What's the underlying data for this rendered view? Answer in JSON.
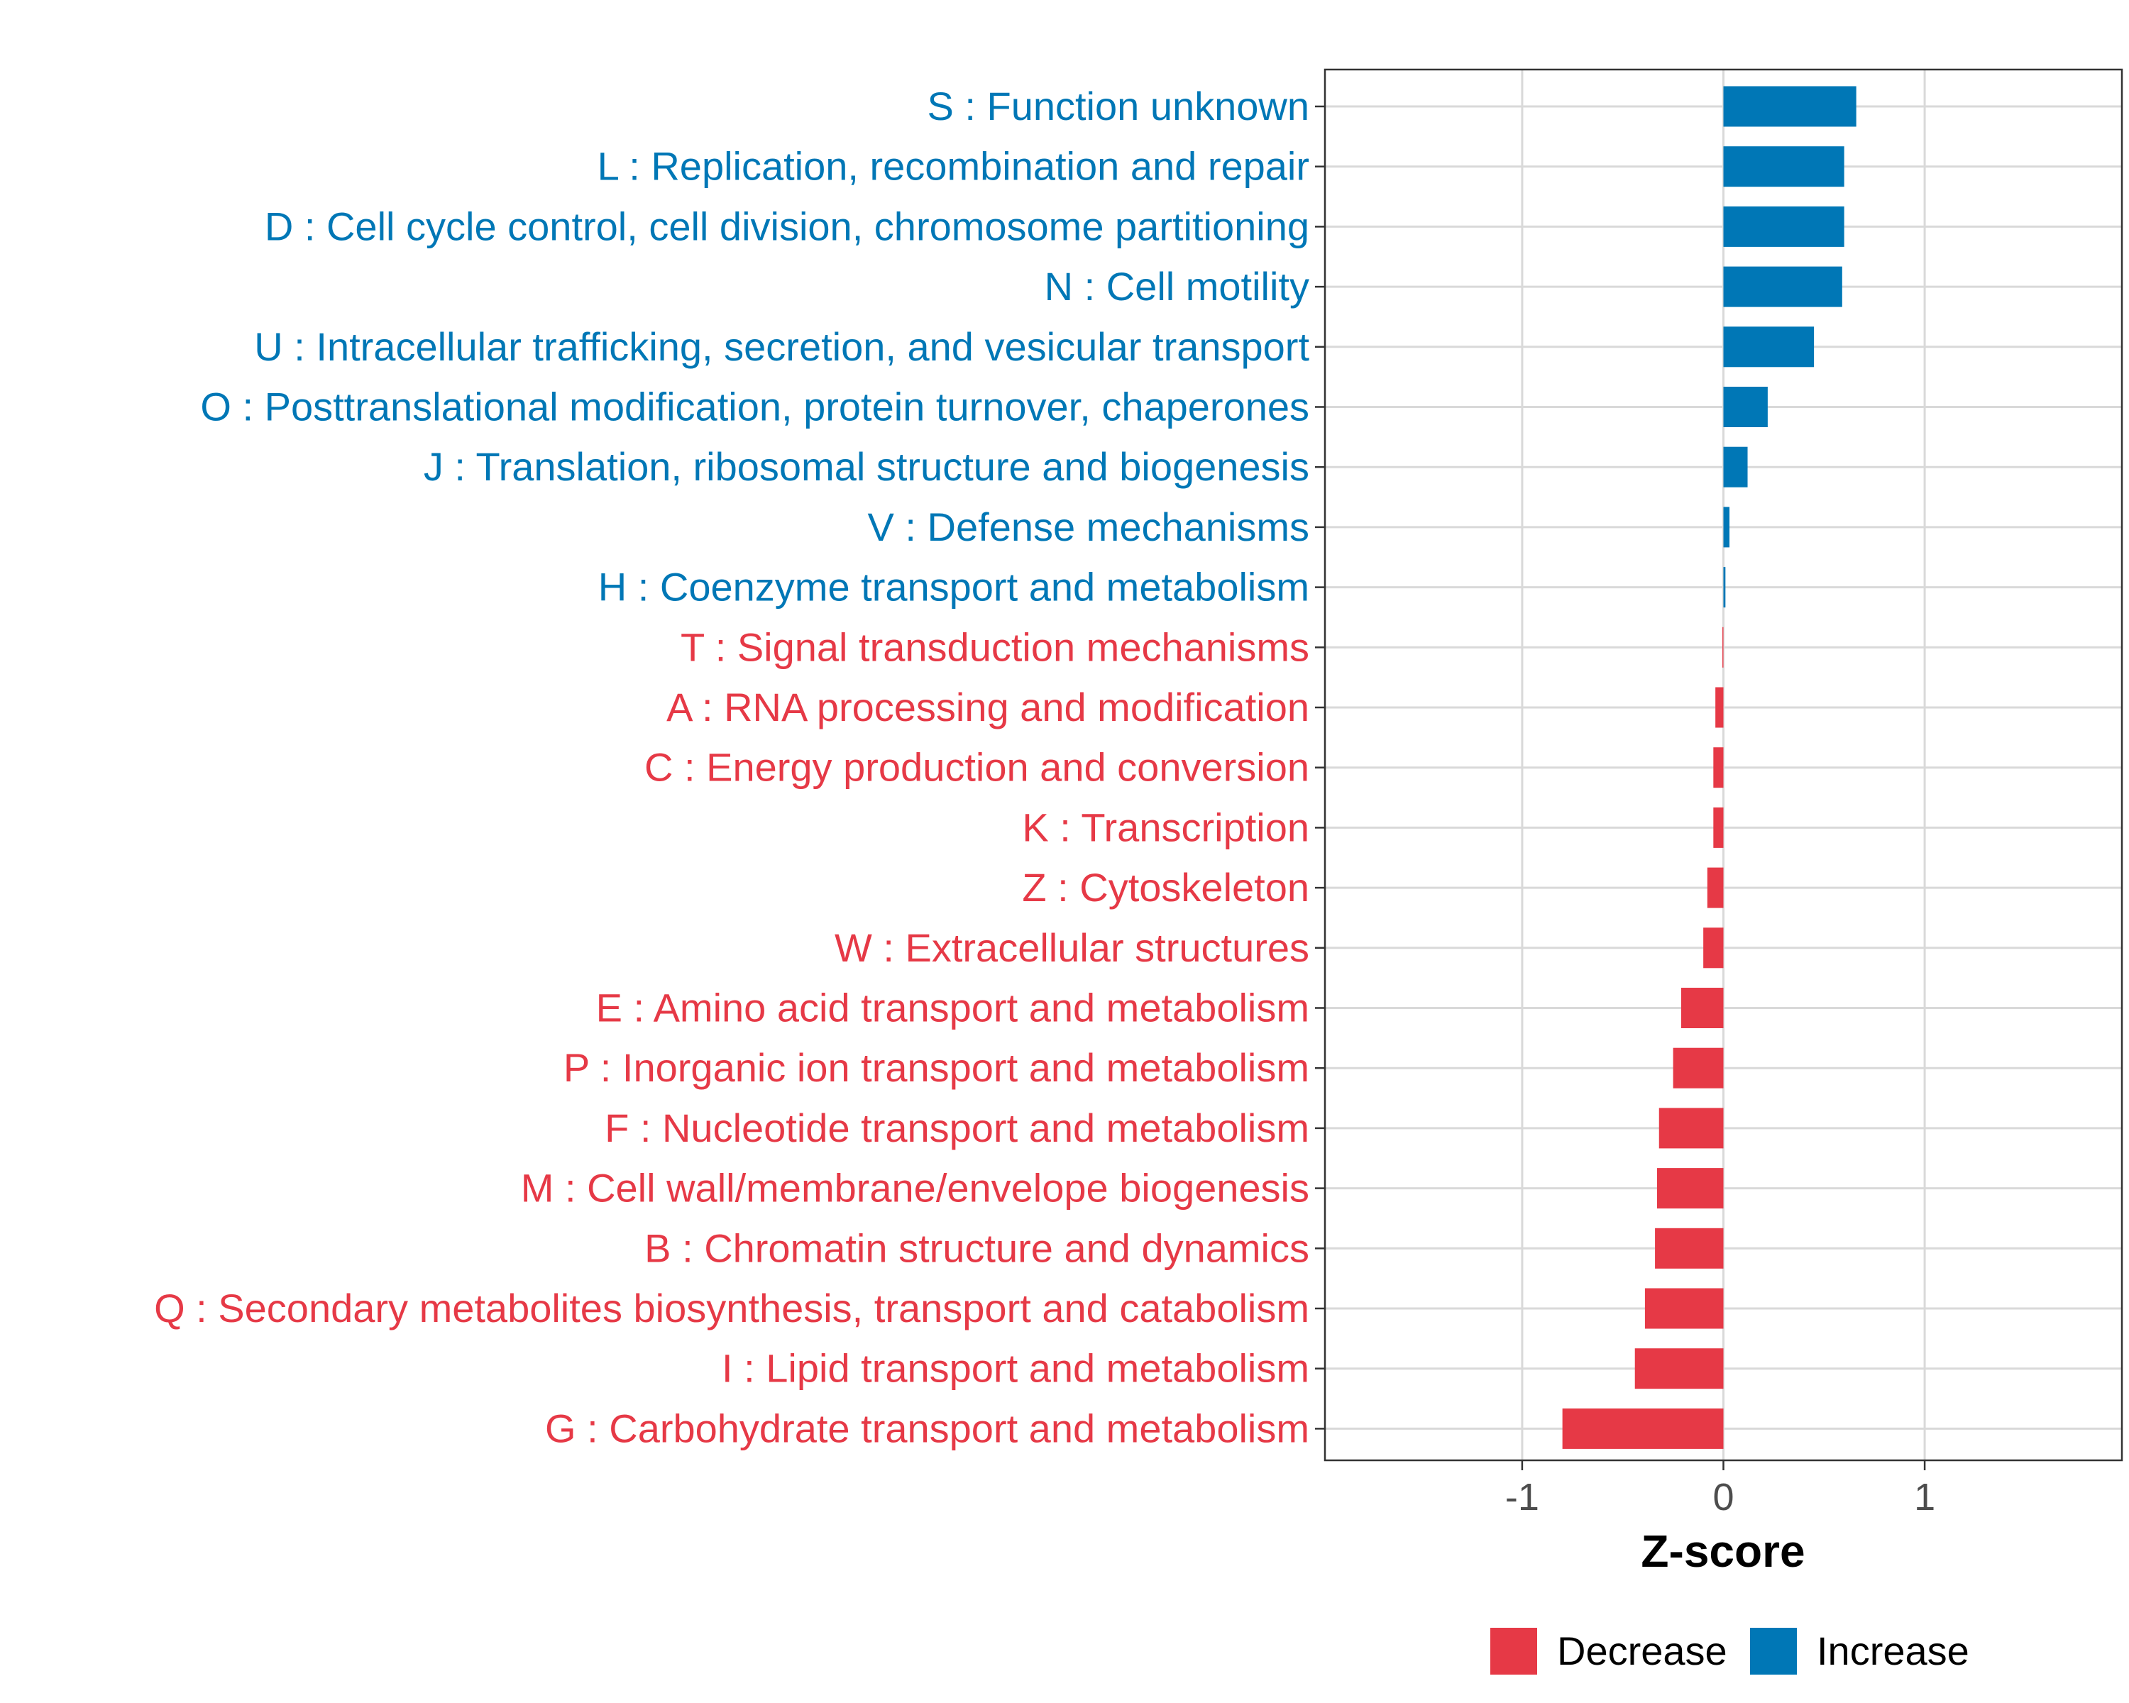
{
  "chart_data": {
    "type": "bar",
    "orientation": "horizontal",
    "title": "",
    "xlabel": "Z-score",
    "ylabel": "",
    "xlim": [
      -1.98,
      1.98
    ],
    "xticks": [
      -1,
      0,
      1
    ],
    "xtick_labels": [
      "-1",
      "0",
      "1"
    ],
    "grid": true,
    "legend_position": "bottom",
    "categories": [
      "S : Function unknown",
      "L : Replication, recombination and repair",
      "D : Cell cycle control, cell division, chromosome partitioning",
      "N : Cell motility",
      "U : Intracellular trafficking, secretion, and vesicular transport",
      "O : Posttranslational modification, protein turnover, chaperones",
      "J : Translation, ribosomal structure and biogenesis",
      "V : Defense mechanisms",
      "H : Coenzyme transport and metabolism",
      "T : Signal transduction mechanisms",
      "A : RNA processing and modification",
      "C : Energy production and conversion",
      "K : Transcription",
      "Z : Cytoskeleton",
      "W : Extracellular structures",
      "E : Amino acid transport and metabolism",
      "P : Inorganic ion transport and metabolism",
      "F : Nucleotide transport and metabolism",
      "M : Cell wall/membrane/envelope biogenesis",
      "B : Chromatin structure and dynamics",
      "Q : Secondary metabolites biosynthesis, transport and catabolism",
      "I : Lipid transport and metabolism",
      "G : Carbohydrate transport and metabolism"
    ],
    "values": [
      0.66,
      0.6,
      0.6,
      0.59,
      0.45,
      0.22,
      0.12,
      0.03,
      0.01,
      -0.005,
      -0.04,
      -0.05,
      -0.05,
      -0.08,
      -0.1,
      -0.21,
      -0.25,
      -0.32,
      -0.33,
      -0.34,
      -0.39,
      -0.44,
      -0.8
    ],
    "groups": [
      "Increase",
      "Increase",
      "Increase",
      "Increase",
      "Increase",
      "Increase",
      "Increase",
      "Increase",
      "Increase",
      "Decrease",
      "Decrease",
      "Decrease",
      "Decrease",
      "Decrease",
      "Decrease",
      "Decrease",
      "Decrease",
      "Decrease",
      "Decrease",
      "Decrease",
      "Decrease",
      "Decrease",
      "Decrease"
    ],
    "legend": [
      {
        "name": "Decrease",
        "color": "#e63946"
      },
      {
        "name": "Increase",
        "color": "#0077b6"
      }
    ]
  },
  "colors": {
    "increase": "#0077b6",
    "decrease": "#e63946",
    "grid": "#d9d9d9",
    "panel_border": "#333333",
    "tick_text": "#4d4d4d"
  }
}
